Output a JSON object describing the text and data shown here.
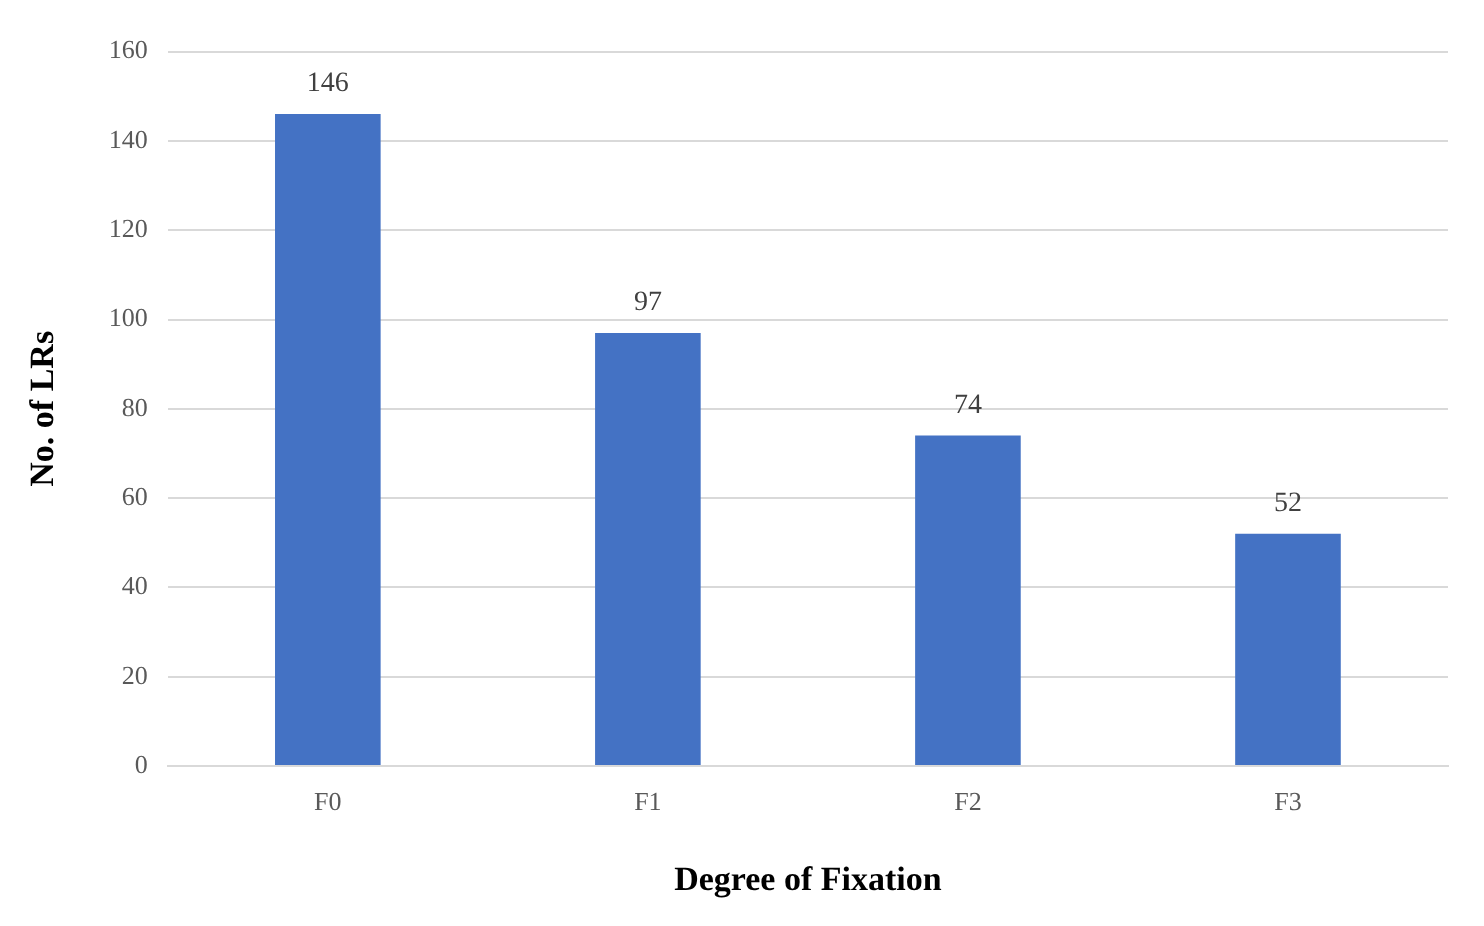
{
  "chart_data": {
    "type": "bar",
    "xlabel": "Degree of Fixation",
    "ylabel": "No. of LRs",
    "categories": [
      "F0",
      "F1",
      "F2",
      "F3"
    ],
    "values": [
      146,
      97,
      74,
      52
    ],
    "color": "#4472c4",
    "ylim": [
      0,
      160
    ],
    "yticks": [
      0,
      20,
      40,
      60,
      80,
      100,
      120,
      140,
      160
    ],
    "grid": "y",
    "data_labels": true
  }
}
